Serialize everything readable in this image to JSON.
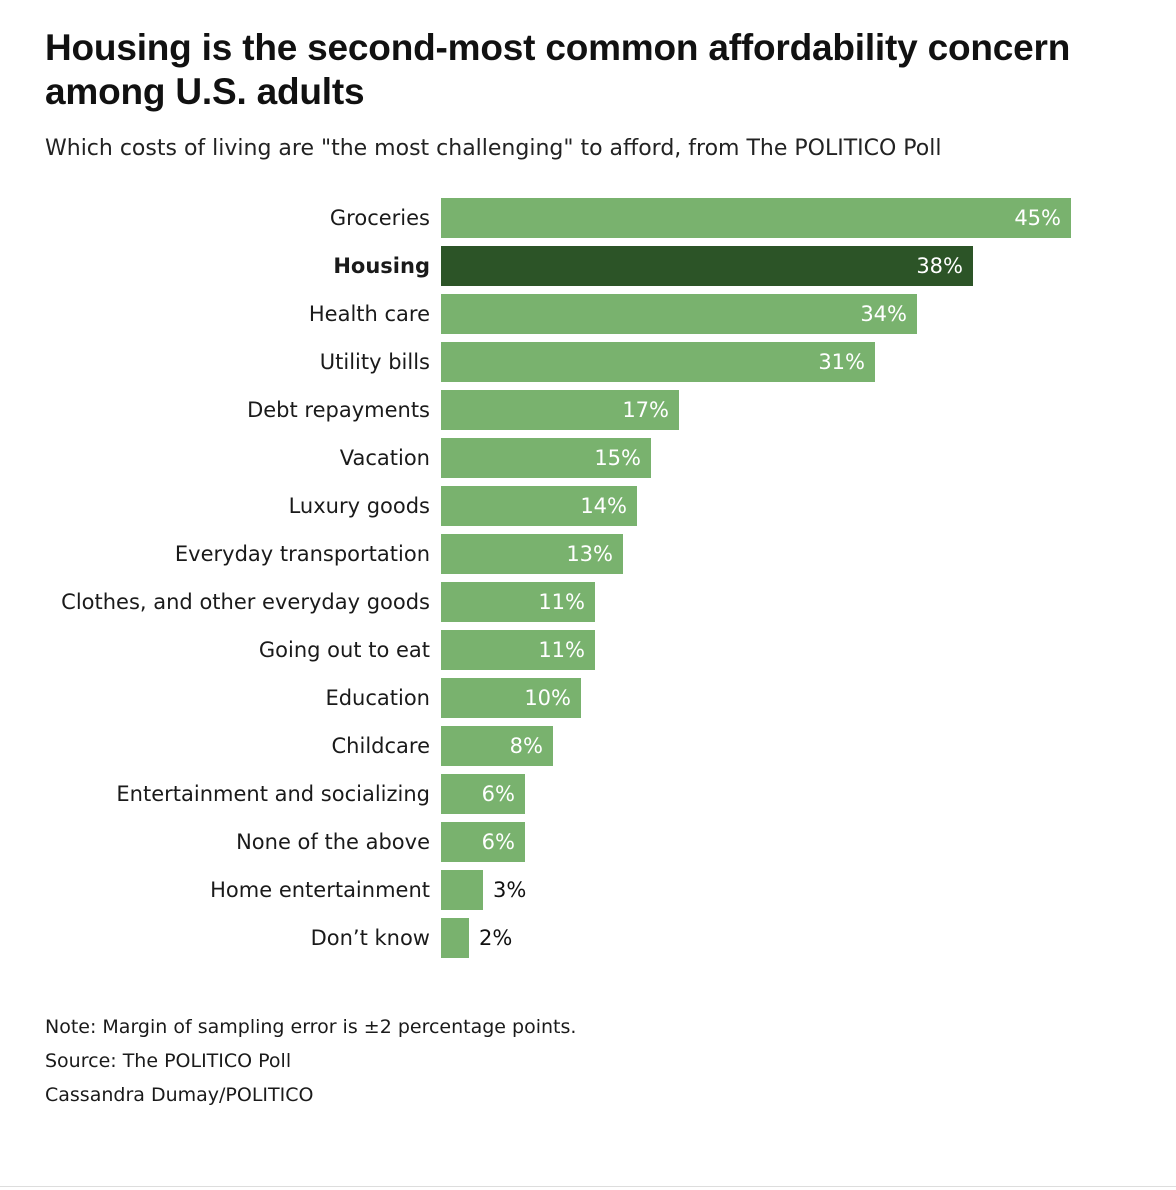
{
  "title": "Housing is the second-most common affordability concern among U.S. adults",
  "subtitle": "Which costs of living are \"the most challenging\" to afford, from The POLITICO Poll",
  "footer": {
    "note": "Note: Margin of sampling error is ±2 percentage points.",
    "source": "Source: The POLITICO Poll",
    "credit": "Cassandra Dumay/POLITICO"
  },
  "colors": {
    "bar": "#79b26e",
    "highlight": "#2c5427",
    "label_inside": "#ffffff",
    "label_outside": "#111111"
  },
  "chart_data": {
    "type": "bar",
    "orientation": "horizontal",
    "title": "Housing is the second-most common affordability concern among U.S. adults",
    "subtitle": "Which costs of living are \"the most challenging\" to afford, from The POLITICO Poll",
    "xlabel": "",
    "ylabel": "",
    "unit": "%",
    "xlim": [
      0,
      45
    ],
    "grid": false,
    "legend": "none",
    "highlight": "Housing",
    "categories": [
      "Groceries",
      "Housing",
      "Health care",
      "Utility bills",
      "Debt repayments",
      "Vacation",
      "Luxury goods",
      "Everyday transportation",
      "Clothes, and other everyday goods",
      "Going out to eat",
      "Education",
      "Childcare",
      "Entertainment and socializing",
      "None of the above",
      "Home entertainment",
      "Don’t know"
    ],
    "values": [
      45,
      38,
      34,
      31,
      17,
      15,
      14,
      13,
      11,
      11,
      10,
      8,
      6,
      6,
      3,
      2
    ],
    "value_labels": [
      "45%",
      "38%",
      "34%",
      "31%",
      "17%",
      "15%",
      "14%",
      "13%",
      "11%",
      "11%",
      "10%",
      "8%",
      "6%",
      "6%",
      "3%",
      "2%"
    ]
  }
}
